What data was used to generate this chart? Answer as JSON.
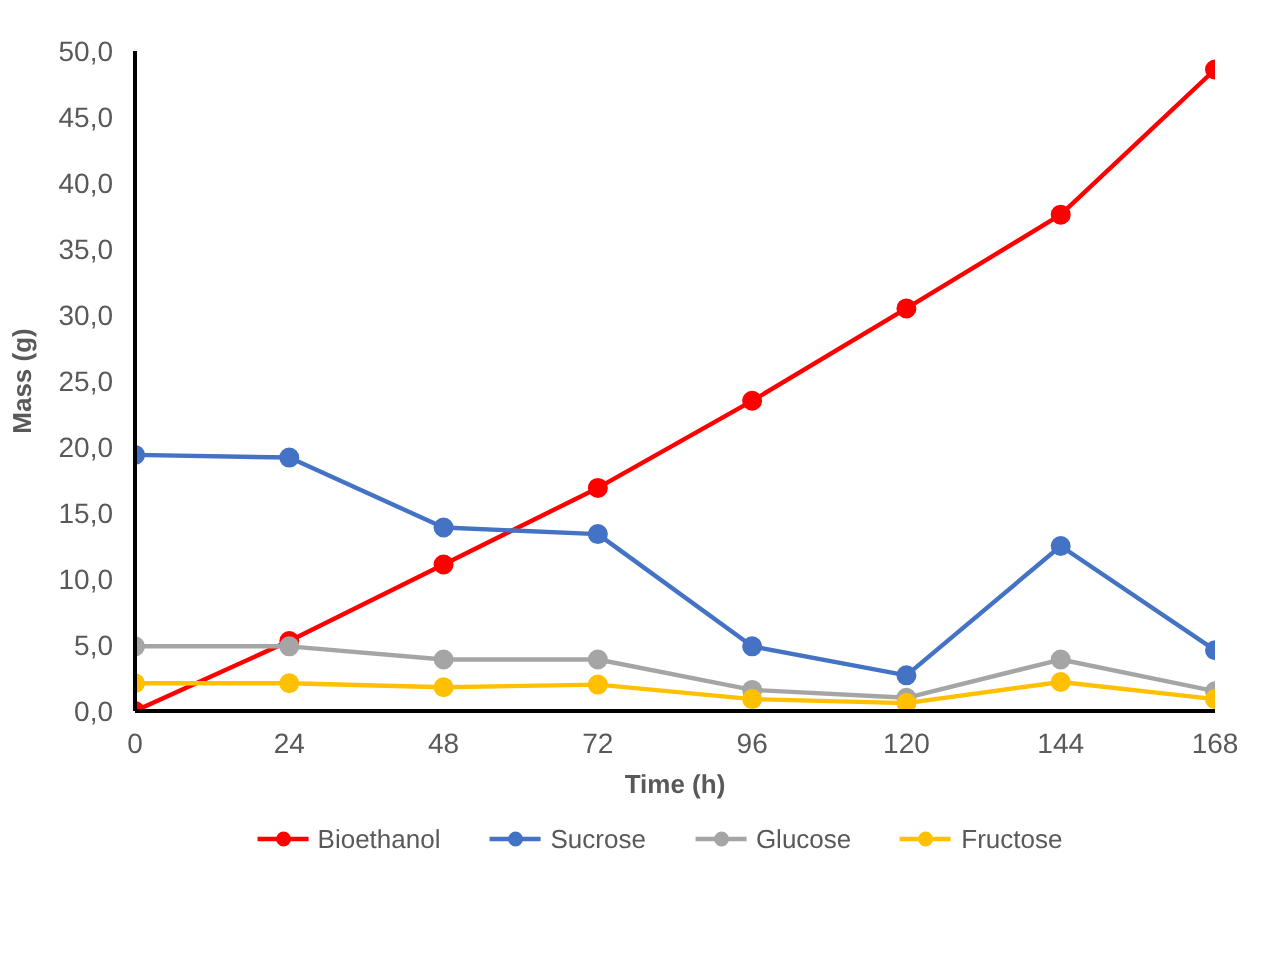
{
  "chart_data": {
    "type": "line",
    "xlabel": "Time (h)",
    "ylabel": "Mass (g)",
    "x": [
      0,
      24,
      48,
      72,
      96,
      120,
      144,
      168
    ],
    "xlim": [
      0,
      168
    ],
    "xticks": [
      0,
      24,
      48,
      72,
      96,
      120,
      144,
      168
    ],
    "ylim": [
      0,
      50
    ],
    "yticks": [
      {
        "value": 0,
        "label": "0,0"
      },
      {
        "value": 5,
        "label": "5,0"
      },
      {
        "value": 10,
        "label": "10,0"
      },
      {
        "value": 15,
        "label": "15,0"
      },
      {
        "value": 20,
        "label": "20,0"
      },
      {
        "value": 25,
        "label": "25,0"
      },
      {
        "value": 30,
        "label": "30,0"
      },
      {
        "value": 35,
        "label": "35,0"
      },
      {
        "value": 40,
        "label": "40,0"
      },
      {
        "value": 45,
        "label": "45,0"
      },
      {
        "value": 50,
        "label": "50,0"
      }
    ],
    "grid": false,
    "legend": "bottom",
    "marker": "circle",
    "line_style": "solid",
    "series": [
      {
        "name": "Bioethanol",
        "color": "#ff0000",
        "values": [
          0,
          5.3,
          11.1,
          16.9,
          23.5,
          30.5,
          37.6,
          48.6
        ]
      },
      {
        "name": "Sucrose",
        "color": "#4472c4",
        "values": [
          19.4,
          19.2,
          13.9,
          13.4,
          4.9,
          2.7,
          12.5,
          4.6
        ]
      },
      {
        "name": "Glucose",
        "color": "#a5a5a5",
        "values": [
          4.9,
          4.9,
          3.9,
          3.9,
          1.6,
          1.0,
          3.9,
          1.5
        ]
      },
      {
        "name": "Fructose",
        "color": "#ffc000",
        "values": [
          2.1,
          2.1,
          1.8,
          2.0,
          0.9,
          0.6,
          2.2,
          0.9
        ]
      }
    ]
  }
}
